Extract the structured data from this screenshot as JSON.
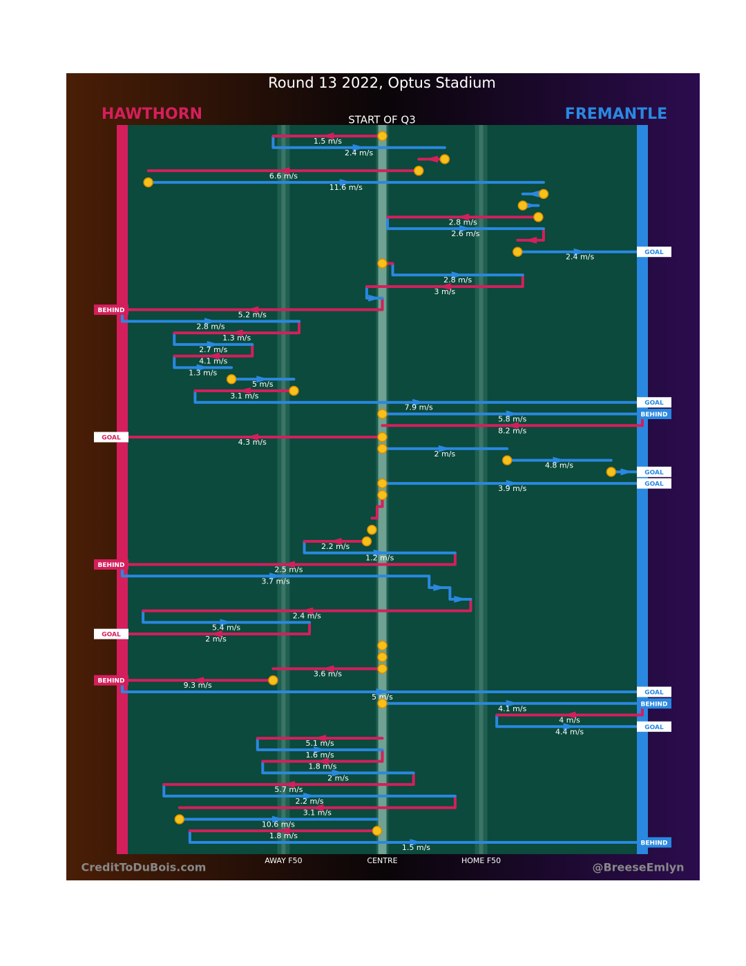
{
  "chart_data": {
    "type": "possession-chain",
    "title": "Round 13 2022, Optus Stadium",
    "subtitle": "START OF Q3",
    "teams": [
      {
        "name": "HAWTHORN",
        "color": "#d41f5c"
      },
      {
        "name": "FREMANTLE",
        "color": "#2a88e0"
      }
    ],
    "xlim": [
      0,
      100
    ],
    "xticks": [
      {
        "value": 31,
        "label": "AWAY F50"
      },
      {
        "value": 50,
        "label": "CENTRE"
      },
      {
        "value": 69,
        "label": "HOME F50"
      }
    ],
    "credits": [
      "CreditToDuBois.com",
      "@BreeseEmlyn"
    ],
    "legs": [
      {
        "team": 0,
        "from": 50,
        "to": 29,
        "speed": "1.5 m/s",
        "start": true
      },
      {
        "team": 1,
        "from": 29,
        "to": 62,
        "speed": "2.4 m/s"
      },
      {
        "team": 0,
        "from": 62,
        "to": 57,
        "start": true
      },
      {
        "team": 0,
        "from": 57,
        "to": 5,
        "speed": "6.6 m/s",
        "start": true
      },
      {
        "team": 1,
        "from": 5,
        "to": 81,
        "speed": "11.6 m/s",
        "start": true
      },
      {
        "team": 1,
        "from": 81,
        "to": 77,
        "start": true
      },
      {
        "team": 1,
        "from": 77,
        "to": 80,
        "start": true
      },
      {
        "team": 0,
        "from": 80,
        "to": 51,
        "speed": "2.8 m/s",
        "start": true
      },
      {
        "team": 1,
        "from": 51,
        "to": 81,
        "speed": "2.6 m/s"
      },
      {
        "team": 0,
        "from": 81,
        "to": 76
      },
      {
        "team": 1,
        "from": 76,
        "to": 100,
        "speed": "2.4 m/s",
        "start": true,
        "result": "GOAL"
      },
      {
        "team": 0,
        "from": 50,
        "to": 52,
        "start": true
      },
      {
        "team": 1,
        "from": 52,
        "to": 77,
        "speed": "2.8 m/s"
      },
      {
        "team": 0,
        "from": 77,
        "to": 47,
        "speed": "3 m/s"
      },
      {
        "team": 1,
        "from": 47,
        "to": 50
      },
      {
        "team": 0,
        "from": 50,
        "to": 0,
        "speed": "5.2 m/s",
        "result": "BEHIND"
      },
      {
        "team": 1,
        "from": 0,
        "to": 34,
        "speed": "2.8 m/s"
      },
      {
        "team": 0,
        "from": 34,
        "to": 10,
        "speed": "1.3 m/s"
      },
      {
        "team": 1,
        "from": 10,
        "to": 25,
        "speed": "2.7 m/s"
      },
      {
        "team": 0,
        "from": 25,
        "to": 10,
        "speed": "4.1 m/s"
      },
      {
        "team": 1,
        "from": 10,
        "to": 21,
        "speed": "1.3 m/s"
      },
      {
        "team": 1,
        "from": 21,
        "to": 33,
        "speed": "5 m/s",
        "start": true
      },
      {
        "team": 0,
        "from": 33,
        "to": 14,
        "speed": "3.1 m/s",
        "start": true
      },
      {
        "team": 1,
        "from": 14,
        "to": 100,
        "speed": "7.9 m/s",
        "result": "GOAL"
      },
      {
        "team": 1,
        "from": 50,
        "to": 100,
        "speed": "5.8 m/s",
        "start": true,
        "result": "BEHIND"
      },
      {
        "team": 0,
        "from": 100,
        "to": 50,
        "speed": "8.2 m/s"
      },
      {
        "team": 0,
        "from": 50,
        "to": 0,
        "speed": "4.3 m/s",
        "start": true,
        "result": "GOAL"
      },
      {
        "team": 1,
        "from": 50,
        "to": 74,
        "speed": "2 m/s",
        "start": true
      },
      {
        "team": 1,
        "from": 74,
        "to": 94,
        "speed": "4.8 m/s",
        "start": true
      },
      {
        "team": 1,
        "from": 94,
        "to": 100,
        "start": true,
        "result": "GOAL"
      },
      {
        "team": 1,
        "from": 50,
        "to": 100,
        "speed": "3.9 m/s",
        "start": true,
        "result": "GOAL"
      },
      {
        "team": 0,
        "from": 50,
        "to": 50,
        "start": true
      },
      {
        "team": 0,
        "from": 50,
        "to": 49
      },
      {
        "team": 0,
        "from": 49,
        "to": 48
      },
      {
        "team": 1,
        "from": 48,
        "to": 48,
        "start": true
      },
      {
        "team": 0,
        "from": 47,
        "to": 35,
        "speed": "2.2 m/s",
        "start": true
      },
      {
        "team": 1,
        "from": 35,
        "to": 64,
        "speed": "1.2 m/s"
      },
      {
        "team": 0,
        "from": 64,
        "to": 0,
        "speed": "2.5 m/s",
        "result": "BEHIND"
      },
      {
        "team": 1,
        "from": 0,
        "to": 59,
        "speed": "3.7 m/s"
      },
      {
        "team": 1,
        "from": 59,
        "to": 63
      },
      {
        "team": 1,
        "from": 63,
        "to": 67
      },
      {
        "team": 0,
        "from": 67,
        "to": 4,
        "speed": "2.4 m/s"
      },
      {
        "team": 1,
        "from": 4,
        "to": 36,
        "speed": "5.4 m/s"
      },
      {
        "team": 0,
        "from": 36,
        "to": 0,
        "speed": "2 m/s",
        "result": "GOAL"
      },
      {
        "team": 0,
        "from": 50,
        "to": 50,
        "start": true
      },
      {
        "team": 1,
        "from": 50,
        "to": 50,
        "start": true
      },
      {
        "team": 0,
        "from": 50,
        "to": 29,
        "speed": "3.6 m/s",
        "start": true
      },
      {
        "team": 0,
        "from": 29,
        "to": 0,
        "speed": "9.3 m/s",
        "start": true,
        "result": "BEHIND"
      },
      {
        "team": 1,
        "from": 0,
        "to": 100,
        "speed": "5 m/s",
        "result": "GOAL"
      },
      {
        "team": 1,
        "from": 50,
        "to": 100,
        "speed": "4.1 m/s",
        "start": true,
        "result": "BEHIND"
      },
      {
        "team": 0,
        "from": 100,
        "to": 72,
        "speed": "4 m/s"
      },
      {
        "team": 1,
        "from": 72,
        "to": 100,
        "speed": "4.4 m/s",
        "result": "GOAL"
      },
      {
        "team": 0,
        "from": 50,
        "to": 26,
        "speed": "5.1 m/s"
      },
      {
        "team": 1,
        "from": 26,
        "to": 50,
        "speed": "1.6 m/s"
      },
      {
        "team": 0,
        "from": 50,
        "to": 27,
        "speed": "1.8 m/s"
      },
      {
        "team": 1,
        "from": 27,
        "to": 56,
        "speed": "2 m/s"
      },
      {
        "team": 0,
        "from": 56,
        "to": 8,
        "speed": "5.7 m/s"
      },
      {
        "team": 1,
        "from": 8,
        "to": 64,
        "speed": "2.2 m/s"
      },
      {
        "team": 0,
        "from": 64,
        "to": 11,
        "speed": "3.1 m/s"
      },
      {
        "team": 1,
        "from": 11,
        "to": 49,
        "speed": "10.6 m/s",
        "start": true
      },
      {
        "team": 0,
        "from": 49,
        "to": 13,
        "speed": "1.8 m/s",
        "start": true
      },
      {
        "team": 1,
        "from": 13,
        "to": 100,
        "speed": "1.5 m/s",
        "result": "BEHIND"
      }
    ]
  }
}
